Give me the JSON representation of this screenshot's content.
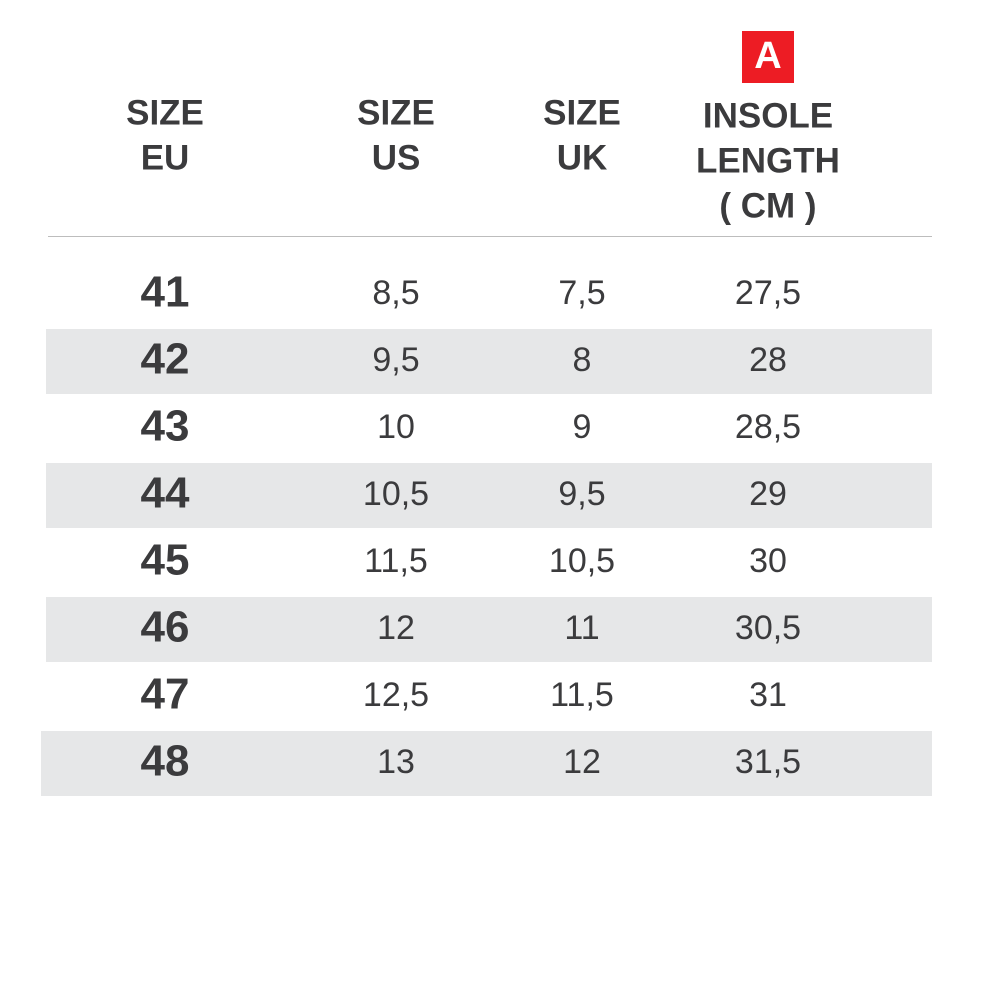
{
  "header": {
    "badge": "A",
    "columns": [
      {
        "lines": [
          "SIZE",
          "EU"
        ]
      },
      {
        "lines": [
          "SIZE",
          "US"
        ]
      },
      {
        "lines": [
          "SIZE",
          "UK"
        ]
      },
      {
        "lines": [
          "INSOLE",
          "LENGTH",
          "( CM )"
        ]
      }
    ]
  },
  "table": {
    "rows": [
      [
        "41",
        "8,5",
        "7,5",
        "27,5"
      ],
      [
        "42",
        "9,5",
        "8",
        "28"
      ],
      [
        "43",
        "10",
        "9",
        "28,5"
      ],
      [
        "44",
        "10,5",
        "9,5",
        "29"
      ],
      [
        "45",
        "11,5",
        "10,5",
        "30"
      ],
      [
        "46",
        "12",
        "11",
        "30,5"
      ],
      [
        "47",
        "12,5",
        "11,5",
        "31"
      ],
      [
        "48",
        "13",
        "12",
        "31,5"
      ]
    ]
  }
}
